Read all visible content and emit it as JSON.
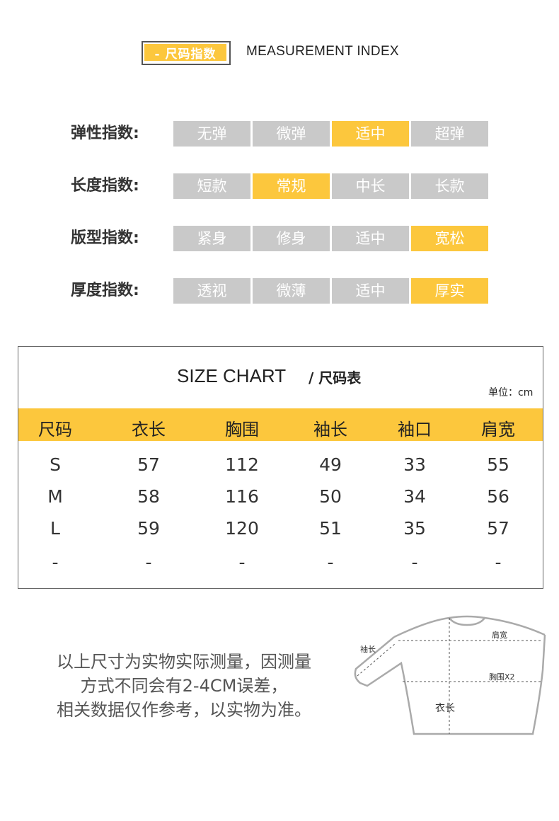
{
  "header": {
    "badge": "- 尺码指数",
    "title": "MEASUREMENT INDEX"
  },
  "indices": [
    {
      "label": "弹性指数:",
      "options": [
        "无弹",
        "微弹",
        "适中",
        "超弹"
      ],
      "selected": 2
    },
    {
      "label": "长度指数:",
      "options": [
        "短款",
        "常规",
        "中长",
        "长款"
      ],
      "selected": 1
    },
    {
      "label": "版型指数:",
      "options": [
        "紧身",
        "修身",
        "适中",
        "宽松"
      ],
      "selected": 3
    },
    {
      "label": "厚度指数:",
      "options": [
        "透视",
        "微薄",
        "适中",
        "厚实"
      ],
      "selected": 3
    }
  ],
  "size_chart": {
    "title": "SIZE CHART",
    "title_cn": "/ 尺码表",
    "unit": "单位：cm",
    "headers": [
      "尺码",
      "衣长",
      "胸围",
      "袖长",
      "袖口",
      "肩宽"
    ],
    "rows": [
      [
        "S",
        "57",
        "112",
        "49",
        "33",
        "55"
      ],
      [
        "M",
        "58",
        "116",
        "50",
        "34",
        "56"
      ],
      [
        "L",
        "59",
        "120",
        "51",
        "35",
        "57"
      ],
      [
        "-",
        "-",
        "-",
        "-",
        "-",
        "-"
      ]
    ]
  },
  "note": {
    "lines": [
      "以上尺寸为实物实际测量，因测量",
      "方式不同会有2-4CM误差，",
      "相关数据仅作参考，以实物为准。"
    ]
  },
  "diagram": {
    "label_sleeve": "袖长",
    "label_shoulder": "肩宽",
    "label_chest": "胸围X2",
    "label_length": "衣长"
  },
  "colors": {
    "accent": "#fcc73d",
    "inactive": "#c9c9c9"
  }
}
